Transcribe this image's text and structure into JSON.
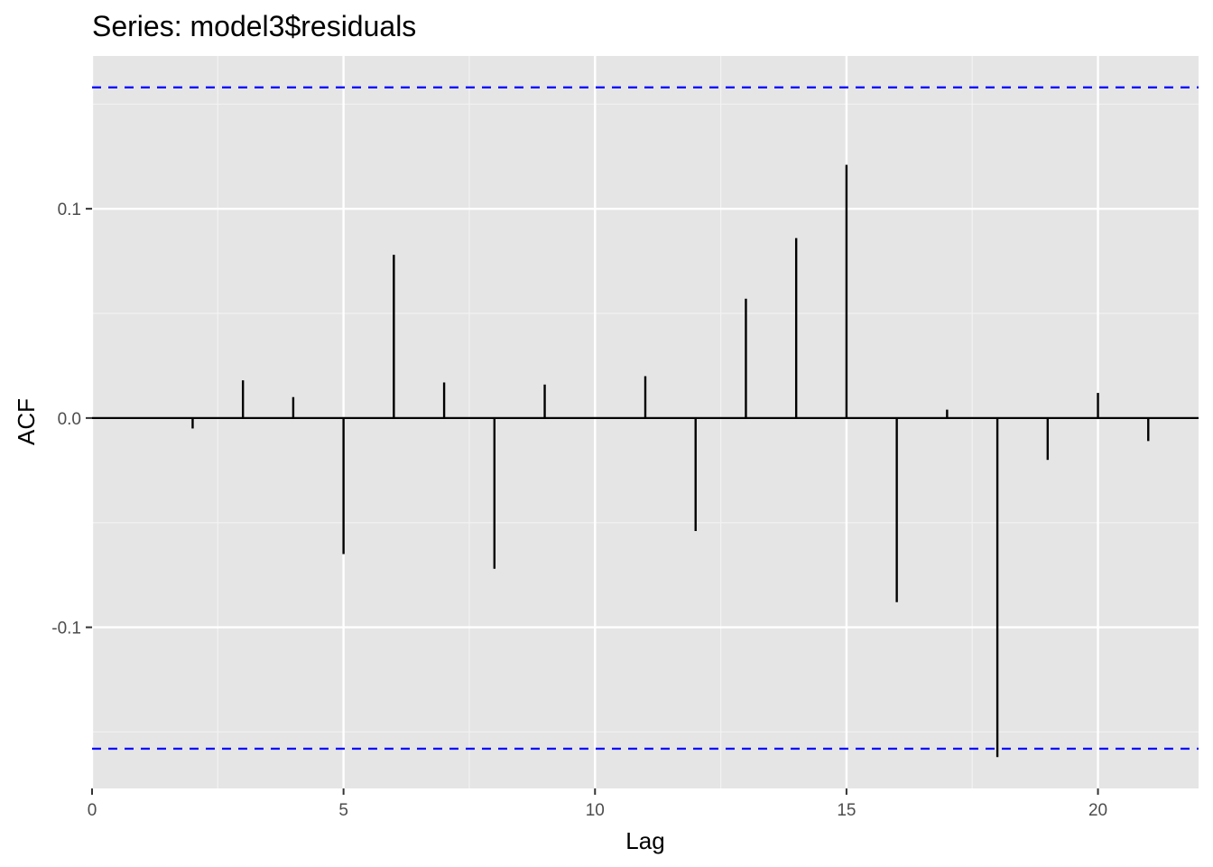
{
  "chart_data": {
    "type": "bar",
    "subtype": "acf-lollipop",
    "title": "Series: model3$residuals",
    "xlabel": "Lag",
    "ylabel": "ACF",
    "xlim": [
      0,
      22
    ],
    "ylim": [
      -0.177,
      0.173
    ],
    "x_ticks": [
      0,
      5,
      10,
      15,
      20
    ],
    "x_tick_labels": [
      "0",
      "5",
      "10",
      "15",
      "20"
    ],
    "y_ticks": [
      -0.1,
      0.0,
      0.1
    ],
    "y_tick_labels": [
      "-0.1",
      "0.0",
      "0.1"
    ],
    "x": [
      1,
      2,
      3,
      4,
      5,
      6,
      7,
      8,
      9,
      10,
      11,
      12,
      13,
      14,
      15,
      16,
      17,
      18,
      19,
      20,
      21
    ],
    "values": [
      0.0,
      -0.005,
      0.018,
      0.01,
      -0.065,
      0.078,
      0.017,
      -0.072,
      0.016,
      0.0,
      0.02,
      -0.054,
      0.057,
      0.086,
      0.121,
      -0.088,
      0.004,
      -0.162,
      -0.02,
      0.012,
      -0.011
    ],
    "confidence_bounds": [
      0.158,
      -0.158
    ],
    "grid": true,
    "colors": {
      "panel_background": "#e5e5e5",
      "grid_major": "#ffffff",
      "grid_minor": "#f2f2f2",
      "segments": "#000000",
      "bounds": "#0000ff"
    }
  }
}
